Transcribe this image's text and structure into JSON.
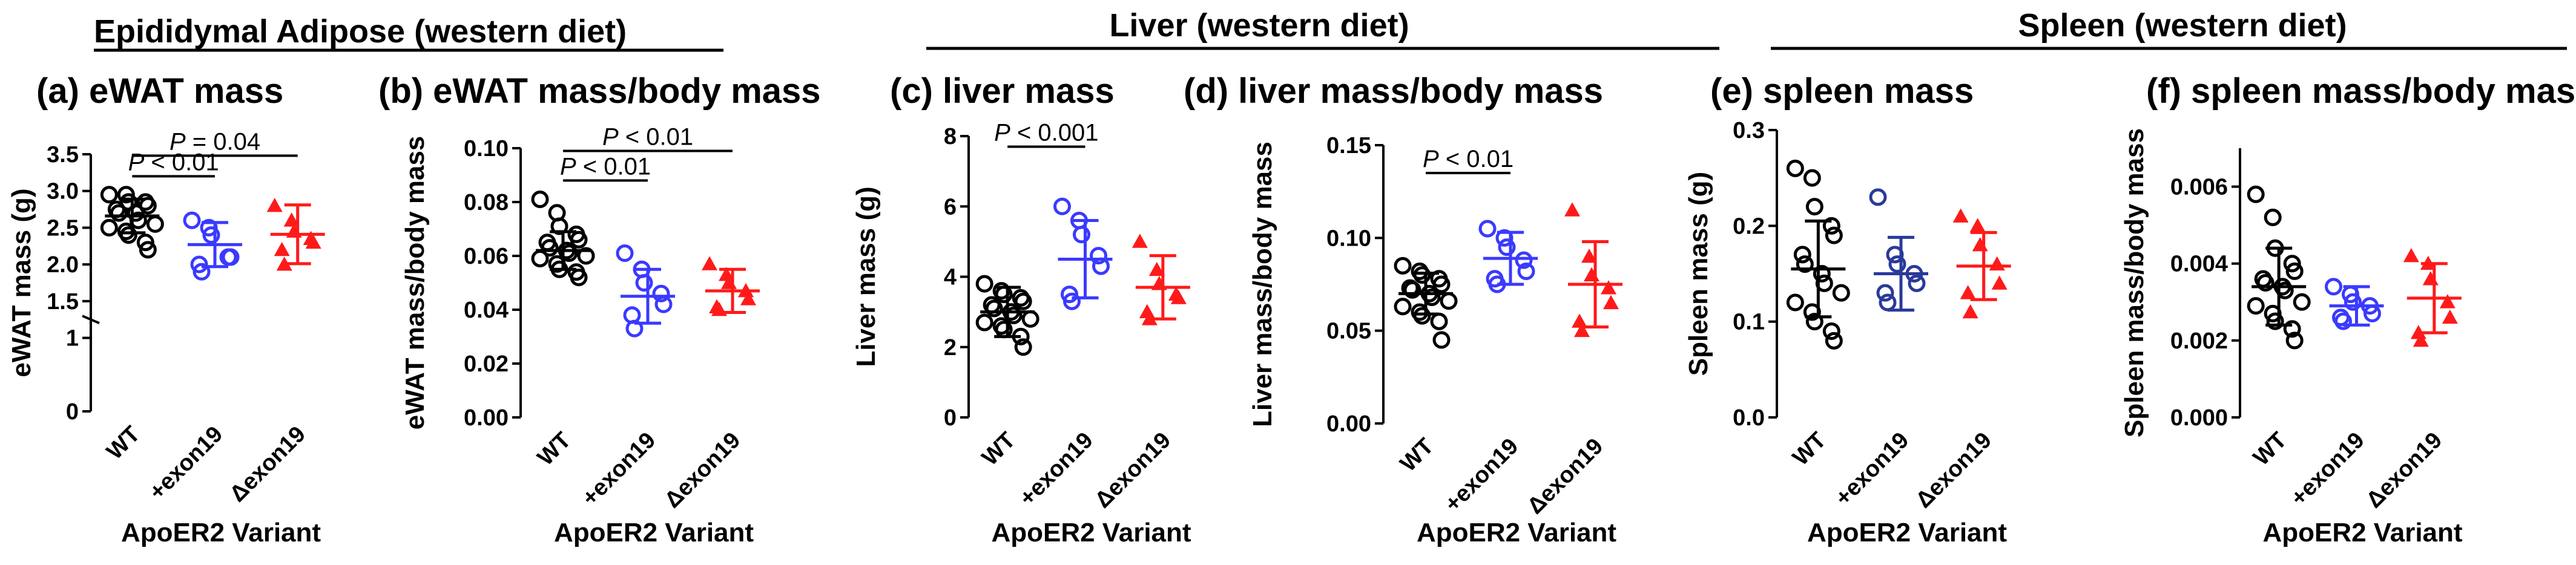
{
  "groups": [
    {
      "title": "Epididymal Adipose (western diet)",
      "underline": false
    },
    {
      "title": "Liver (western diet)",
      "underline": true
    },
    {
      "title": "Spleen (western diet)",
      "underline": true
    }
  ],
  "colors": {
    "WT": "#000000",
    "+exon19": "#3a3aff",
    "Δexon19": "#ff1a1a",
    "+exon19_spleen": "#2a3a9a"
  },
  "chart_data": [
    {
      "type": "scatter",
      "panel_label": "(a) eWAT mass",
      "ylabel": "eWAT mass (g)",
      "xlabel": "ApoER2 Variant",
      "categories": [
        "WT",
        "+exon19",
        "Δexon19"
      ],
      "ylim": [
        0,
        3.5
      ],
      "axis_break": true,
      "yticks": [
        {
          "v": 0,
          "label": "0"
        },
        {
          "v": 1,
          "label": "1"
        },
        {
          "v": 1.5,
          "label": "1.5"
        },
        {
          "v": 2.0,
          "label": "2.0"
        },
        {
          "v": 2.5,
          "label": "2.5"
        },
        {
          "v": 3.0,
          "label": "3.0"
        },
        {
          "v": 3.5,
          "label": "3.5"
        }
      ],
      "series": [
        {
          "values": [
            2.95,
            2.95,
            2.85,
            2.85,
            2.8,
            2.75,
            2.7,
            2.7,
            2.6,
            2.55,
            2.5,
            2.45,
            2.4,
            2.3,
            2.2
          ],
          "mean": 2.66,
          "sd": 0.23
        },
        {
          "values": [
            2.6,
            2.5,
            2.4,
            2.1,
            2.1,
            2.0,
            1.9
          ],
          "mean": 2.27,
          "sd": 0.3
        },
        {
          "values": [
            2.8,
            2.6,
            2.45,
            2.35,
            2.3,
            2.2,
            2.0
          ],
          "mean": 2.41,
          "sd": 0.4
        }
      ],
      "annotations": [
        {
          "from": 0,
          "to": 1,
          "y": 3.2,
          "label": "P < 0.01"
        },
        {
          "from": 0,
          "to": 2,
          "y": 3.48,
          "label": "P = 0.04"
        }
      ]
    },
    {
      "type": "scatter",
      "panel_label": "(b) eWAT mass/body mass",
      "ylabel": "eWAT mass/body mass",
      "xlabel": "ApoER2 Variant",
      "categories": [
        "WT",
        "+exon19",
        "Δexon19"
      ],
      "ylim": [
        0,
        0.1
      ],
      "yticks": [
        {
          "v": 0,
          "label": "0.00"
        },
        {
          "v": 0.02,
          "label": "0.02"
        },
        {
          "v": 0.04,
          "label": "0.04"
        },
        {
          "v": 0.06,
          "label": "0.06"
        },
        {
          "v": 0.08,
          "label": "0.08"
        },
        {
          "v": 0.1,
          "label": "0.10"
        }
      ],
      "series": [
        {
          "values": [
            0.081,
            0.076,
            0.071,
            0.068,
            0.066,
            0.065,
            0.063,
            0.062,
            0.061,
            0.06,
            0.059,
            0.057,
            0.055,
            0.054,
            0.052
          ],
          "mean": 0.062,
          "sd": 0.007
        },
        {
          "values": [
            0.061,
            0.055,
            0.05,
            0.046,
            0.042,
            0.038,
            0.033
          ],
          "mean": 0.045,
          "sd": 0.01
        },
        {
          "values": [
            0.057,
            0.053,
            0.05,
            0.047,
            0.044,
            0.041,
            0.04
          ],
          "mean": 0.047,
          "sd": 0.008
        }
      ],
      "annotations": [
        {
          "from": 0,
          "to": 1,
          "y": 0.088,
          "label": "P < 0.01"
        },
        {
          "from": 0,
          "to": 2,
          "y": 0.099,
          "label": "P < 0.01"
        }
      ]
    },
    {
      "type": "scatter",
      "panel_label": "(c) liver mass",
      "ylabel": "Liver mass (g)",
      "xlabel": "ApoER2 Variant",
      "categories": [
        "WT",
        "+exon19",
        "Δexon19"
      ],
      "ylim": [
        0,
        8
      ],
      "yticks": [
        {
          "v": 0,
          "label": "0"
        },
        {
          "v": 2,
          "label": "2"
        },
        {
          "v": 4,
          "label": "4"
        },
        {
          "v": 6,
          "label": "6"
        },
        {
          "v": 8,
          "label": "8"
        }
      ],
      "series": [
        {
          "values": [
            3.8,
            3.6,
            3.5,
            3.4,
            3.3,
            3.2,
            3.1,
            3.0,
            2.9,
            2.8,
            2.7,
            2.6,
            2.5,
            2.3,
            2.0
          ],
          "mean": 3.0,
          "sd": 0.7
        },
        {
          "values": [
            6.0,
            5.6,
            5.2,
            4.6,
            4.3,
            3.5,
            3.3
          ],
          "mean": 4.5,
          "sd": 1.1
        },
        {
          "values": [
            5.0,
            4.2,
            3.8,
            3.5,
            3.4,
            3.0,
            2.8
          ],
          "mean": 3.7,
          "sd": 0.9
        }
      ],
      "annotations": [
        {
          "from": 0,
          "to": 1,
          "y": 7.7,
          "label": "P < 0.001"
        }
      ]
    },
    {
      "type": "scatter",
      "panel_label": "(d) liver mass/body mass",
      "ylabel": "Liver mass/body mass",
      "xlabel": "ApoER2 Variant",
      "categories": [
        "WT",
        "+exon19",
        "Δexon19"
      ],
      "ylim": [
        0,
        0.15
      ],
      "yticks": [
        {
          "v": 0,
          "label": "0.00"
        },
        {
          "v": 0.05,
          "label": "0.05"
        },
        {
          "v": 0.1,
          "label": "0.10"
        },
        {
          "v": 0.15,
          "label": "0.15"
        }
      ],
      "series": [
        {
          "values": [
            0.085,
            0.082,
            0.08,
            0.078,
            0.075,
            0.073,
            0.072,
            0.07,
            0.068,
            0.066,
            0.063,
            0.06,
            0.058,
            0.055,
            0.045
          ],
          "mean": 0.07,
          "sd": 0.011
        },
        {
          "values": [
            0.105,
            0.1,
            0.095,
            0.088,
            0.082,
            0.078,
            0.075
          ],
          "mean": 0.089,
          "sd": 0.014
        },
        {
          "values": [
            0.115,
            0.09,
            0.08,
            0.073,
            0.065,
            0.055,
            0.05
          ],
          "mean": 0.075,
          "sd": 0.023
        }
      ],
      "annotations": [
        {
          "from": 0,
          "to": 1,
          "y": 0.135,
          "label": "P < 0.01"
        }
      ]
    },
    {
      "type": "scatter",
      "panel_label": "(e) spleen mass",
      "ylabel": "Spleen mass (g)",
      "xlabel": "ApoER2 Variant",
      "categories": [
        "WT",
        "+exon19",
        "Δexon19"
      ],
      "ylim": [
        0,
        0.3
      ],
      "yticks": [
        {
          "v": 0,
          "label": "0.0"
        },
        {
          "v": 0.1,
          "label": "0.1"
        },
        {
          "v": 0.2,
          "label": "0.2"
        },
        {
          "v": 0.3,
          "label": "0.3"
        }
      ],
      "series": [
        {
          "values": [
            0.26,
            0.25,
            0.22,
            0.2,
            0.19,
            0.17,
            0.16,
            0.15,
            0.14,
            0.13,
            0.12,
            0.11,
            0.1,
            0.09,
            0.08
          ],
          "mean": 0.155,
          "sd": 0.05
        },
        {
          "values": [
            0.23,
            0.17,
            0.16,
            0.15,
            0.14,
            0.13,
            0.12
          ],
          "mean": 0.15,
          "sd": 0.038
        },
        {
          "values": [
            0.21,
            0.2,
            0.18,
            0.16,
            0.14,
            0.13,
            0.11
          ],
          "mean": 0.158,
          "sd": 0.035
        }
      ],
      "annotations": []
    },
    {
      "type": "scatter",
      "panel_label": "(f) spleen mass/body mass",
      "ylabel": "Spleen mass/body mass",
      "xlabel": "ApoER2 Variant",
      "categories": [
        "WT",
        "+exon19",
        "Δexon19"
      ],
      "ylim": [
        0,
        0.007
      ],
      "yticks": [
        {
          "v": 0,
          "label": "0.000"
        },
        {
          "v": 0.002,
          "label": "0.002"
        },
        {
          "v": 0.004,
          "label": "0.004"
        },
        {
          "v": 0.006,
          "label": "0.006"
        }
      ],
      "series": [
        {
          "values": [
            0.0058,
            0.0052,
            0.0044,
            0.004,
            0.0038,
            0.0036,
            0.0035,
            0.0034,
            0.0033,
            0.003,
            0.0029,
            0.0027,
            0.0025,
            0.0023,
            0.002
          ],
          "mean": 0.0034,
          "sd": 0.001
        },
        {
          "values": [
            0.0034,
            0.0032,
            0.003,
            0.0029,
            0.0027,
            0.0026,
            0.0025
          ],
          "mean": 0.0029,
          "sd": 0.0005
        },
        {
          "values": [
            0.0042,
            0.004,
            0.0036,
            0.003,
            0.0026,
            0.0022,
            0.002
          ],
          "mean": 0.0031,
          "sd": 0.0009
        }
      ],
      "annotations": []
    }
  ]
}
